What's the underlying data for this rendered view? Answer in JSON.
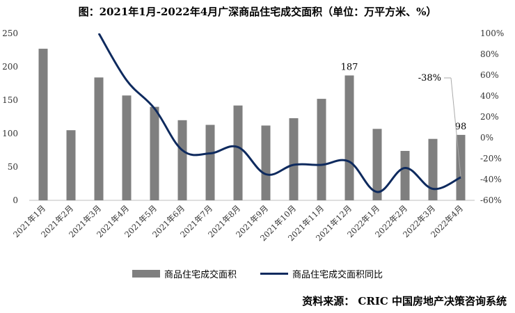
{
  "title": "图：2021年1月-2022年4月广深商品住宅成交面积（单位：万平方米、%）",
  "source": "资料来源：  CRIC 中国房地产决策咨询系统",
  "colors": {
    "bar": "#7f7f7f",
    "line": "#0e2a5e",
    "leader": "#aaaaaa"
  },
  "chart_data": {
    "type": "bar",
    "categories": [
      "2021年1月",
      "2021年2月",
      "2021年3月",
      "2021年4月",
      "2021年5月",
      "2021年6月",
      "2021年7月",
      "2021年8月",
      "2021年9月",
      "2021年10月",
      "2021年11月",
      "2021年12月",
      "2022年1月",
      "2022年2月",
      "2022年3月",
      "2022年4月"
    ],
    "series": [
      {
        "name": "商品住宅成交面积",
        "type": "bar",
        "axis": "left",
        "values": [
          227,
          105,
          184,
          157,
          140,
          120,
          113,
          142,
          112,
          123,
          152,
          187,
          107,
          74,
          92,
          98
        ]
      },
      {
        "name": "商品住宅成交面积同比",
        "type": "line",
        "axis": "right",
        "unit": "%",
        "values": [
          null,
          null,
          100,
          55,
          28,
          -12,
          -15,
          -9,
          -35,
          -26,
          -26,
          -23,
          -52,
          -29,
          -49,
          -38
        ]
      }
    ],
    "ylim_left": [
      0,
      250
    ],
    "yticks_left": [
      "0",
      "50",
      "100",
      "150",
      "200",
      "250"
    ],
    "ylim_right": [
      -60,
      100
    ],
    "yticks_right": [
      "-60%",
      "-40%",
      "-20%",
      "0%",
      "20%",
      "40%",
      "60%",
      "80%",
      "100%"
    ],
    "annotations": [
      {
        "series": "商品住宅成交面积",
        "category": "2021年12月",
        "text": "187"
      },
      {
        "series": "商品住宅成交面积",
        "category": "2022年4月",
        "text": "98"
      },
      {
        "series": "商品住宅成交面积同比",
        "category": "2022年4月",
        "text": "-38%"
      }
    ],
    "legend": "bottom",
    "grid": false
  }
}
